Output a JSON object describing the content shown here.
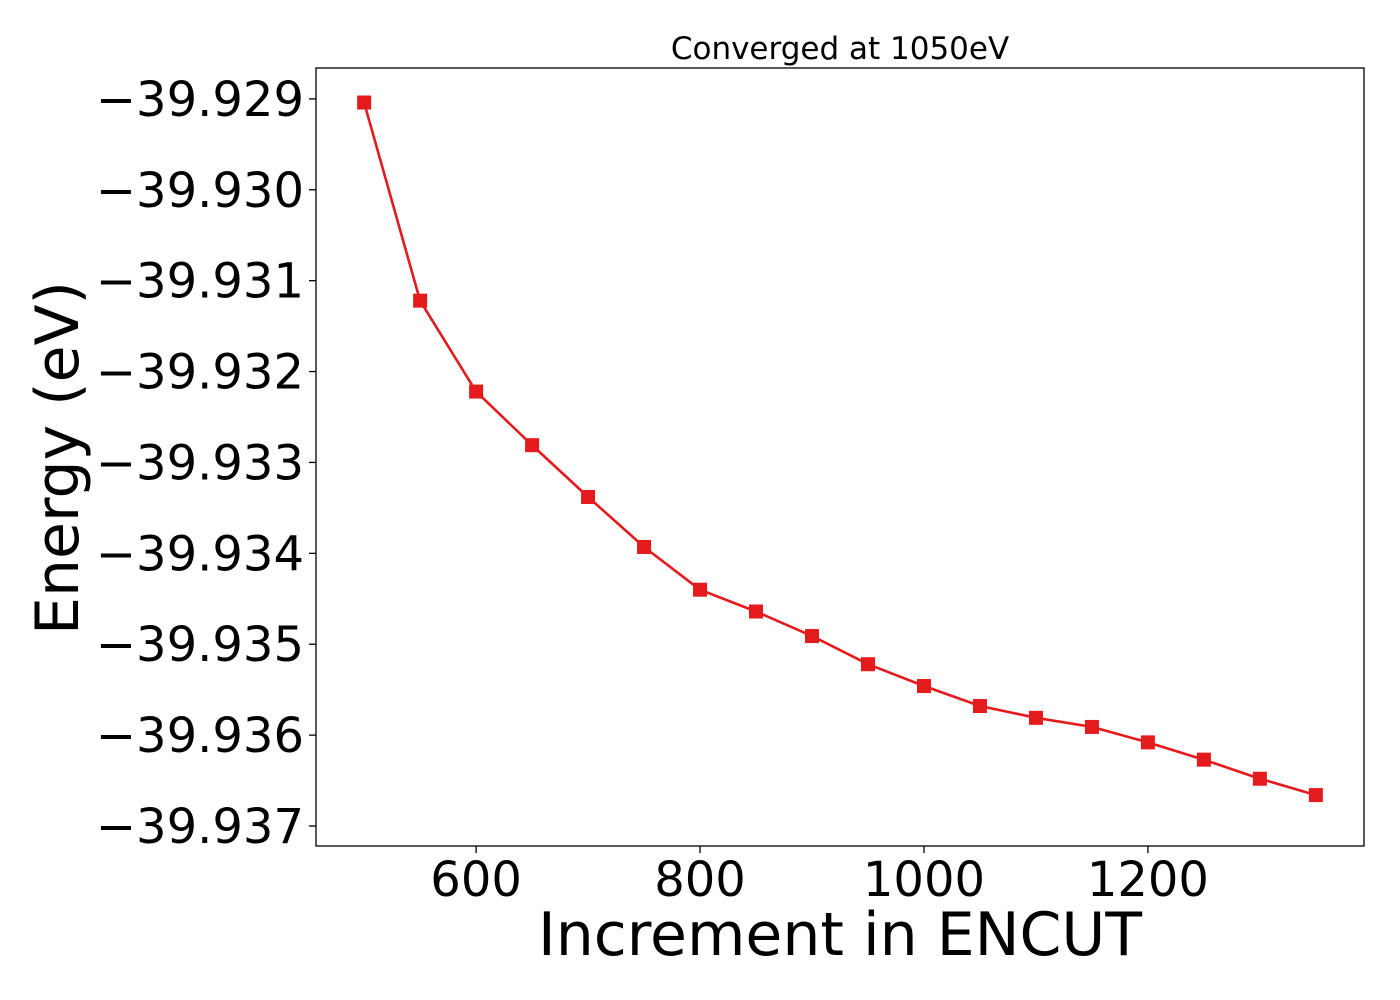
{
  "chart_data": {
    "type": "line",
    "title": "Converged at 1050eV",
    "xlabel": "Increment in ENCUT",
    "ylabel": "Energy (eV)",
    "xlim": [
      457,
      1393
    ],
    "ylim": [
      -39.93722,
      -39.92866
    ],
    "xticks": [
      600,
      800,
      1000,
      1200
    ],
    "xtick_labels": [
      "600",
      "800",
      "1000",
      "1200"
    ],
    "yticks": [
      -39.929,
      -39.93,
      -39.931,
      -39.932,
      -39.933,
      -39.934,
      -39.935,
      -39.936,
      -39.937
    ],
    "ytick_labels": [
      "−39.929",
      "−39.930",
      "−39.931",
      "−39.932",
      "−39.933",
      "−39.934",
      "−39.935",
      "−39.936",
      "−39.937"
    ],
    "grid": false,
    "series": [
      {
        "color": "#e41a1c",
        "marker": "square",
        "x": [
          500,
          550,
          600,
          650,
          700,
          750,
          800,
          850,
          900,
          950,
          1000,
          1050,
          1100,
          1150,
          1200,
          1250,
          1300,
          1350
        ],
        "y": [
          -39.92904,
          -39.93122,
          -39.93222,
          -39.93281,
          -39.93338,
          -39.93393,
          -39.9344,
          -39.93464,
          -39.93491,
          -39.93522,
          -39.93546,
          -39.93568,
          -39.93581,
          -39.93591,
          -39.93608,
          -39.93627,
          -39.93648,
          -39.93666
        ]
      }
    ]
  }
}
